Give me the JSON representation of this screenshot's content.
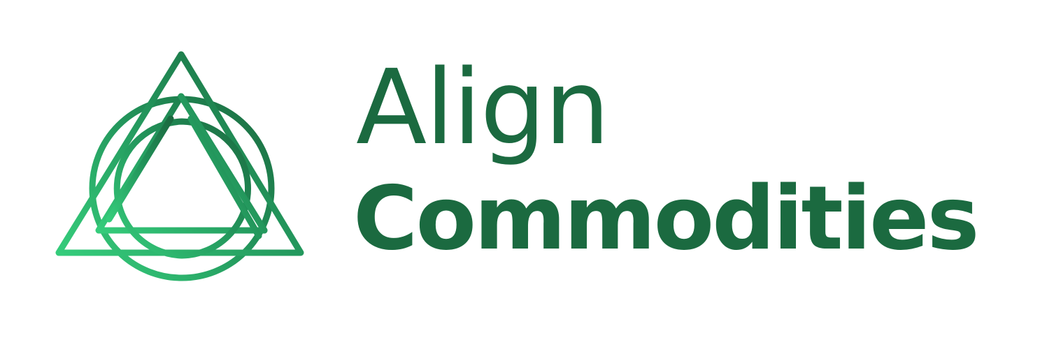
{
  "logo": {
    "line1": "Align",
    "line2": "Commodities",
    "icon": "triangle-in-circle-icon",
    "colors": {
      "text": "#1b6a40",
      "mark_gradient_start": "#35cc7b",
      "mark_gradient_end": "#1b6a40",
      "background": "#ffffff"
    }
  }
}
